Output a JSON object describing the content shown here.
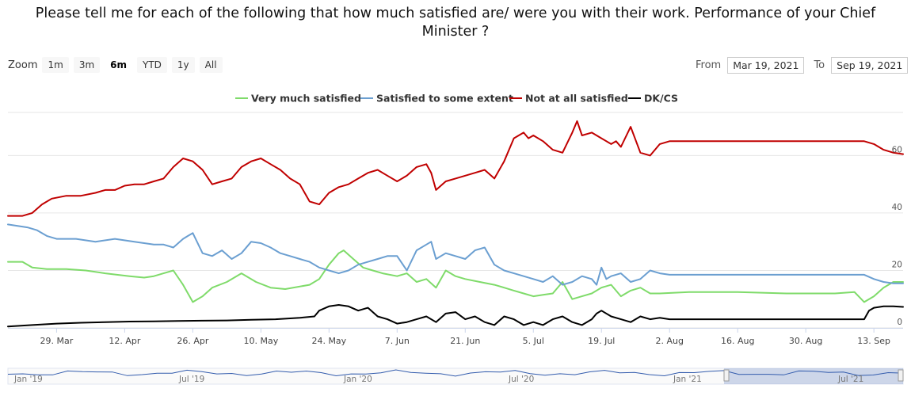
{
  "chart_data": {
    "type": "line",
    "title_line1": "Please tell me for each of the following that how much satisfied are/ were you with their work. Performance of your Chief",
    "title_line2": "Minister ?",
    "ylim": [
      0,
      75
    ],
    "yticks": [
      0,
      20,
      40,
      60
    ],
    "x_tick_labels": [
      "29. Mar",
      "12. Apr",
      "26. Apr",
      "10. May",
      "24. May",
      "7. Jun",
      "21. Jun",
      "5. Jul",
      "19. Jul",
      "2. Aug",
      "16. Aug",
      "30. Aug",
      "13. Sep"
    ],
    "x_tick_days": [
      10,
      24,
      38,
      52,
      66,
      80,
      94,
      108,
      122,
      136,
      150,
      164,
      178
    ],
    "x_range_days": [
      0,
      184
    ],
    "series": [
      {
        "name": "Very much satisfied",
        "color": "#7fdb6a",
        "x": [
          0,
          3,
          5,
          8,
          12,
          16,
          20,
          25,
          28,
          30,
          32,
          34,
          36,
          38,
          40,
          42,
          45,
          48,
          51,
          54,
          57,
          62,
          64,
          66,
          68,
          69,
          71,
          73,
          75,
          77,
          80,
          82,
          84,
          86,
          88,
          90,
          92,
          94,
          97,
          100,
          102,
          104,
          106,
          108,
          110,
          112,
          114,
          116,
          118,
          120,
          122,
          124,
          126,
          128,
          130,
          132,
          134,
          140,
          150,
          160,
          170,
          174,
          176,
          178,
          180,
          182,
          184
        ],
        "y": [
          23,
          23,
          21,
          20.5,
          20.5,
          20,
          19,
          18,
          17.5,
          18,
          19,
          20,
          15,
          9,
          11,
          14,
          16,
          19,
          16,
          14,
          13.5,
          15,
          17,
          22,
          26,
          27,
          24,
          21,
          20,
          19,
          18,
          19,
          16,
          17,
          14,
          20,
          18,
          17,
          16,
          15,
          14,
          13,
          12,
          11,
          11.5,
          12,
          16,
          10,
          11,
          12,
          14,
          15,
          11,
          13,
          14,
          12,
          12,
          12.5,
          12.5,
          12,
          12,
          12.5,
          9,
          11,
          14,
          16,
          16
        ]
      },
      {
        "name": "Satisfied to some extent",
        "color": "#6b9fd1",
        "x": [
          0,
          2,
          4,
          6,
          8,
          10,
          14,
          18,
          22,
          26,
          30,
          32,
          34,
          36,
          37,
          38,
          40,
          42,
          44,
          46,
          48,
          50,
          52,
          54,
          56,
          58,
          60,
          62,
          64,
          66,
          68,
          70,
          72,
          74,
          76,
          78,
          80,
          82,
          84,
          86,
          87,
          88,
          90,
          92,
          94,
          96,
          98,
          100,
          102,
          104,
          106,
          108,
          110,
          112,
          114,
          116,
          118,
          120,
          121,
          122,
          123,
          124,
          126,
          128,
          130,
          132,
          134,
          136,
          140,
          150,
          160,
          170,
          176,
          178,
          180,
          182,
          184
        ],
        "y": [
          36,
          35.5,
          35,
          34,
          32,
          31,
          31,
          30,
          31,
          30,
          29,
          29,
          28,
          31,
          32,
          33,
          26,
          25,
          27,
          24,
          26,
          30,
          29.5,
          28,
          26,
          25,
          24,
          23,
          21,
          20,
          19,
          20,
          22,
          23,
          24,
          25,
          25,
          20,
          27,
          29,
          30,
          24,
          26,
          25,
          24,
          27,
          28,
          22,
          20,
          19,
          18,
          17,
          16,
          18,
          15,
          16,
          18,
          17,
          15,
          21,
          17,
          18,
          19,
          16,
          17,
          20,
          19,
          18.5,
          18.5,
          18.5,
          18.5,
          18.5,
          18.5,
          17,
          16,
          15.5,
          15.5
        ]
      },
      {
        "name": "Not at all satisfied",
        "color": "#c00000",
        "x": [
          0,
          3,
          5,
          7,
          9,
          12,
          15,
          18,
          20,
          22,
          24,
          26,
          28,
          30,
          32,
          34,
          36,
          38,
          40,
          42,
          44,
          46,
          48,
          50,
          52,
          54,
          56,
          58,
          60,
          62,
          64,
          66,
          68,
          70,
          72,
          74,
          76,
          78,
          80,
          82,
          84,
          86,
          87,
          88,
          90,
          92,
          94,
          96,
          98,
          100,
          102,
          104,
          106,
          107,
          108,
          110,
          112,
          114,
          116,
          117,
          118,
          120,
          122,
          124,
          125,
          126,
          128,
          130,
          132,
          134,
          136,
          140,
          150,
          160,
          170,
          174,
          176,
          178,
          180,
          182,
          184
        ],
        "y": [
          39,
          39,
          40,
          43,
          45,
          46,
          46,
          47,
          48,
          48,
          49.5,
          50,
          50,
          51,
          52,
          56,
          59,
          58,
          55,
          50,
          51,
          52,
          56,
          58,
          59,
          57,
          55,
          52,
          50,
          44,
          43,
          47,
          49,
          50,
          52,
          54,
          55,
          53,
          51,
          53,
          56,
          57,
          54,
          48,
          51,
          52,
          53,
          54,
          55,
          52,
          58,
          66,
          68,
          66,
          67,
          65,
          62,
          61,
          68,
          72,
          67,
          68,
          66,
          64,
          65,
          63,
          70,
          61,
          60,
          64,
          65,
          65,
          65,
          65,
          65,
          65,
          65,
          64,
          62,
          61,
          60.5
        ]
      },
      {
        "name": "DK/CS",
        "color": "#000000",
        "x": [
          0,
          5,
          10,
          15,
          20,
          25,
          30,
          35,
          40,
          45,
          50,
          55,
          60,
          63,
          64,
          66,
          68,
          70,
          72,
          74,
          76,
          78,
          80,
          82,
          84,
          86,
          88,
          90,
          92,
          94,
          96,
          98,
          100,
          102,
          104,
          106,
          108,
          110,
          112,
          114,
          116,
          118,
          120,
          121,
          122,
          124,
          126,
          128,
          130,
          132,
          134,
          136,
          140,
          150,
          160,
          170,
          174,
          176,
          177,
          178,
          180,
          182,
          184
        ],
        "y": [
          0.5,
          1,
          1.5,
          1.8,
          2,
          2.2,
          2.3,
          2.4,
          2.5,
          2.6,
          2.8,
          3,
          3.5,
          4,
          6,
          7.5,
          8,
          7.5,
          6,
          7,
          4,
          3,
          1.5,
          2,
          3,
          4,
          2,
          5,
          5.5,
          3,
          4,
          2,
          1,
          4,
          3,
          1,
          2,
          1,
          3,
          4,
          2,
          1,
          3,
          5,
          6,
          4,
          3,
          2,
          4,
          3,
          3.5,
          3,
          3,
          3,
          3,
          3,
          3,
          3,
          6,
          7,
          7.5,
          7.5,
          7.3
        ]
      }
    ]
  },
  "controls": {
    "zoom_label": "Zoom",
    "zoom_buttons": [
      "1m",
      "3m",
      "6m",
      "YTD",
      "1y",
      "All"
    ],
    "from_label": "From",
    "from_value": "Mar 19, 2021",
    "to_label": "To",
    "to_value": "Sep 19, 2021"
  },
  "navigator": {
    "labels": [
      "Jan '19",
      "Jul '19",
      "Jan '20",
      "Jul '20",
      "Jan '21",
      "Jul '21"
    ],
    "selected_range_fraction": [
      0.8,
      1.0
    ]
  }
}
